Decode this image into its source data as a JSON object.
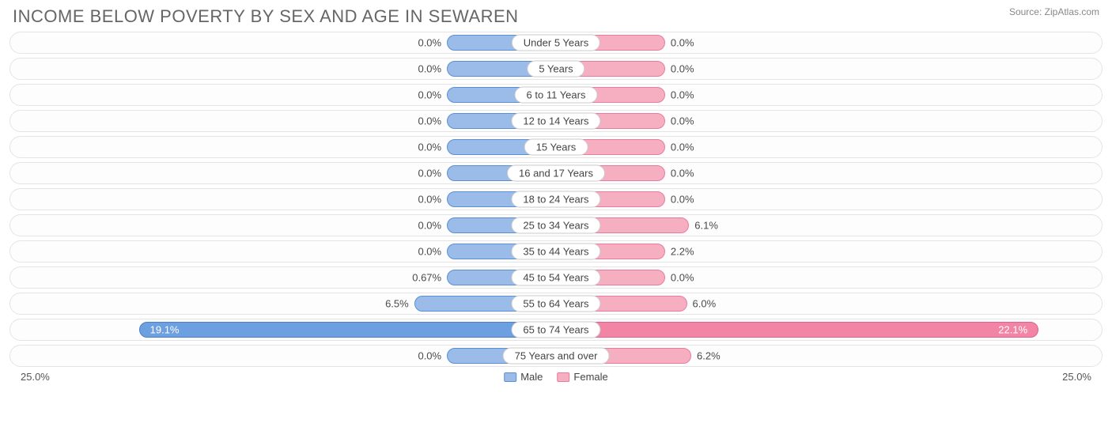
{
  "title": "INCOME BELOW POVERTY BY SEX AND AGE IN SEWAREN",
  "source": "Source: ZipAtlas.com",
  "axis_max": 25.0,
  "axis_label_left": "25.0%",
  "axis_label_right": "25.0%",
  "min_bar_pct": 5.0,
  "colors": {
    "male_fill": "#9bbce8",
    "male_border": "#5a8fd6",
    "male_strong_fill": "#6da0e0",
    "male_strong_border": "#4a7fc9",
    "female_fill": "#f6aec1",
    "female_border": "#ea7ba0",
    "female_strong_fill": "#f285a6",
    "female_strong_border": "#e45f8b",
    "track_border": "#e4e4e4",
    "cat_border": "#cccccc",
    "text": "#4a4a4a"
  },
  "legend": {
    "male": "Male",
    "female": "Female"
  },
  "rows": [
    {
      "label": "Under 5 Years",
      "male": 0.0,
      "female": 0.0,
      "male_txt": "0.0%",
      "female_txt": "0.0%"
    },
    {
      "label": "5 Years",
      "male": 0.0,
      "female": 0.0,
      "male_txt": "0.0%",
      "female_txt": "0.0%"
    },
    {
      "label": "6 to 11 Years",
      "male": 0.0,
      "female": 0.0,
      "male_txt": "0.0%",
      "female_txt": "0.0%"
    },
    {
      "label": "12 to 14 Years",
      "male": 0.0,
      "female": 0.0,
      "male_txt": "0.0%",
      "female_txt": "0.0%"
    },
    {
      "label": "15 Years",
      "male": 0.0,
      "female": 0.0,
      "male_txt": "0.0%",
      "female_txt": "0.0%"
    },
    {
      "label": "16 and 17 Years",
      "male": 0.0,
      "female": 0.0,
      "male_txt": "0.0%",
      "female_txt": "0.0%"
    },
    {
      "label": "18 to 24 Years",
      "male": 0.0,
      "female": 0.0,
      "male_txt": "0.0%",
      "female_txt": "0.0%"
    },
    {
      "label": "25 to 34 Years",
      "male": 0.0,
      "female": 6.1,
      "male_txt": "0.0%",
      "female_txt": "6.1%"
    },
    {
      "label": "35 to 44 Years",
      "male": 0.0,
      "female": 2.2,
      "male_txt": "0.0%",
      "female_txt": "2.2%"
    },
    {
      "label": "45 to 54 Years",
      "male": 0.67,
      "female": 0.0,
      "male_txt": "0.67%",
      "female_txt": "0.0%"
    },
    {
      "label": "55 to 64 Years",
      "male": 6.5,
      "female": 6.0,
      "male_txt": "6.5%",
      "female_txt": "6.0%"
    },
    {
      "label": "65 to 74 Years",
      "male": 19.1,
      "female": 22.1,
      "male_txt": "19.1%",
      "female_txt": "22.1%",
      "strong": true
    },
    {
      "label": "75 Years and over",
      "male": 0.0,
      "female": 6.2,
      "male_txt": "0.0%",
      "female_txt": "6.2%"
    }
  ]
}
